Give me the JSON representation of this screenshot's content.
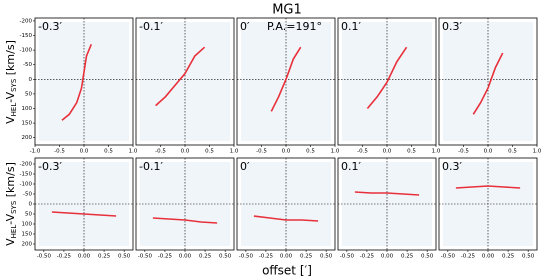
{
  "title": "MG1",
  "xlabel": "offset [′]",
  "ylabel": [
    "V",
    "HEL",
    "-V",
    "SYS",
    " [km/s]"
  ],
  "chart_data": [
    {
      "type": "line",
      "label": "-0.3′",
      "xlim": [
        -1,
        1
      ],
      "ylim": [
        -210,
        225
      ],
      "xticks": [
        {
          "value": -1,
          "label": "-1.0"
        },
        -0.5,
        {
          "value": 0,
          "label": "0.0"
        },
        0.5,
        {
          "value": 1,
          "label": "1.0"
        }
      ],
      "yticks": [
        -200,
        -150,
        -100,
        -50,
        0,
        50,
        100,
        150,
        200
      ],
      "series": [
        {
          "color": "#e8303a",
          "x": [
            -0.45,
            -0.3,
            -0.15,
            -0.05,
            0.05,
            0.15
          ],
          "values": [
            140,
            120,
            80,
            30,
            -80,
            -120
          ]
        }
      ]
    },
    {
      "type": "line",
      "label": "-0.1′",
      "xlim": [
        -1,
        1
      ],
      "ylim": [
        -210,
        225
      ],
      "xticks": [
        -0.5,
        {
          "value": 0,
          "label": "0.0"
        },
        0.5,
        {
          "value": 1,
          "label": "1.0"
        }
      ],
      "series": [
        {
          "color": "#e8303a",
          "x": [
            -0.6,
            -0.4,
            -0.2,
            0,
            0.2,
            0.4
          ],
          "values": [
            90,
            60,
            20,
            -20,
            -80,
            -110
          ]
        }
      ]
    },
    {
      "type": "line",
      "label": "0′",
      "annotation": "P.A.=191°",
      "xlim": [
        -1,
        1
      ],
      "ylim": [
        -210,
        225
      ],
      "xticks": [
        -0.5,
        {
          "value": 0,
          "label": "0.0"
        },
        0.5,
        {
          "value": 1,
          "label": "1.0"
        }
      ],
      "series": [
        {
          "color": "#e8303a",
          "x": [
            -0.3,
            -0.15,
            0,
            0.15,
            0.3
          ],
          "values": [
            110,
            60,
            0,
            -70,
            -110
          ]
        }
      ]
    },
    {
      "type": "line",
      "label": "0.1′",
      "xlim": [
        -1,
        1
      ],
      "ylim": [
        -210,
        225
      ],
      "xticks": [
        -0.5,
        {
          "value": 0,
          "label": "0.0"
        },
        0.5,
        {
          "value": 1,
          "label": "1.0"
        }
      ],
      "series": [
        {
          "color": "#e8303a",
          "x": [
            -0.4,
            -0.2,
            0,
            0.2,
            0.4
          ],
          "values": [
            100,
            60,
            10,
            -60,
            -110
          ]
        }
      ]
    },
    {
      "type": "line",
      "label": "0.3′",
      "xlim": [
        -1,
        1
      ],
      "ylim": [
        -210,
        225
      ],
      "xticks": [
        -0.5,
        {
          "value": 0,
          "label": "0.0"
        },
        0.5,
        {
          "value": 1,
          "label": "1.0"
        }
      ],
      "series": [
        {
          "color": "#e8303a",
          "x": [
            -0.3,
            -0.15,
            0,
            0.15,
            0.3
          ],
          "values": [
            120,
            80,
            30,
            -40,
            -90
          ]
        }
      ]
    },
    {
      "type": "line",
      "label": "-0.3′",
      "xlim": [
        -0.61,
        0.61
      ],
      "ylim": [
        -230,
        230
      ],
      "xticks": [
        {
          "value": -0.5,
          "label": "-0.50"
        },
        -0.25,
        {
          "value": 0,
          "label": "0.00"
        },
        0.25,
        {
          "value": 0.5,
          "label": "0.50"
        }
      ],
      "yticks": [
        -200,
        -150,
        -100,
        -50,
        0,
        50,
        100,
        150,
        200
      ],
      "series": [
        {
          "color": "#e8303a",
          "x": [
            -0.4,
            -0.2,
            0,
            0.2,
            0.4
          ],
          "values": [
            40,
            45,
            50,
            55,
            60
          ]
        }
      ]
    },
    {
      "type": "line",
      "label": "-0.1′",
      "xlim": [
        -0.61,
        0.61
      ],
      "ylim": [
        -230,
        230
      ],
      "xticks": [
        {
          "value": -0.5,
          "label": "-0.50"
        },
        -0.25,
        {
          "value": 0,
          "label": "0.00"
        },
        0.25,
        {
          "value": 0.5,
          "label": "0.50"
        }
      ],
      "series": [
        {
          "color": "#e8303a",
          "x": [
            -0.4,
            -0.2,
            0,
            0.2,
            0.4
          ],
          "values": [
            70,
            75,
            80,
            90,
            95
          ]
        }
      ]
    },
    {
      "type": "line",
      "label": "0′",
      "xlim": [
        -0.61,
        0.61
      ],
      "ylim": [
        -230,
        230
      ],
      "xticks": [
        {
          "value": -0.5,
          "label": "-0.50"
        },
        -0.25,
        {
          "value": 0,
          "label": "0.00"
        },
        0.25,
        {
          "value": 0.5,
          "label": "0.50"
        }
      ],
      "series": [
        {
          "color": "#e8303a",
          "x": [
            -0.4,
            -0.2,
            0,
            0.2,
            0.4
          ],
          "values": [
            60,
            70,
            80,
            80,
            85
          ]
        }
      ]
    },
    {
      "type": "line",
      "label": "0.1′",
      "xlim": [
        -0.61,
        0.61
      ],
      "ylim": [
        -230,
        230
      ],
      "xticks": [
        {
          "value": -0.5,
          "label": "-0.50"
        },
        -0.25,
        {
          "value": 0,
          "label": "0.00"
        },
        0.25,
        {
          "value": 0.5,
          "label": "0.50"
        }
      ],
      "series": [
        {
          "color": "#e8303a",
          "x": [
            -0.4,
            -0.2,
            0,
            0.2,
            0.4
          ],
          "values": [
            -60,
            -55,
            -55,
            -50,
            -45
          ]
        }
      ]
    },
    {
      "type": "line",
      "label": "0.3′",
      "xlim": [
        -0.61,
        0.61
      ],
      "ylim": [
        -230,
        230
      ],
      "xticks": [
        {
          "value": -0.5,
          "label": "-0.50"
        },
        -0.25,
        {
          "value": 0,
          "label": "0.00"
        },
        0.25,
        {
          "value": 0.5,
          "label": "0.50"
        }
      ],
      "series": [
        {
          "color": "#e8303a",
          "x": [
            -0.4,
            -0.2,
            0,
            0.2,
            0.4
          ],
          "values": [
            -80,
            -85,
            -90,
            -85,
            -80
          ]
        }
      ]
    }
  ]
}
